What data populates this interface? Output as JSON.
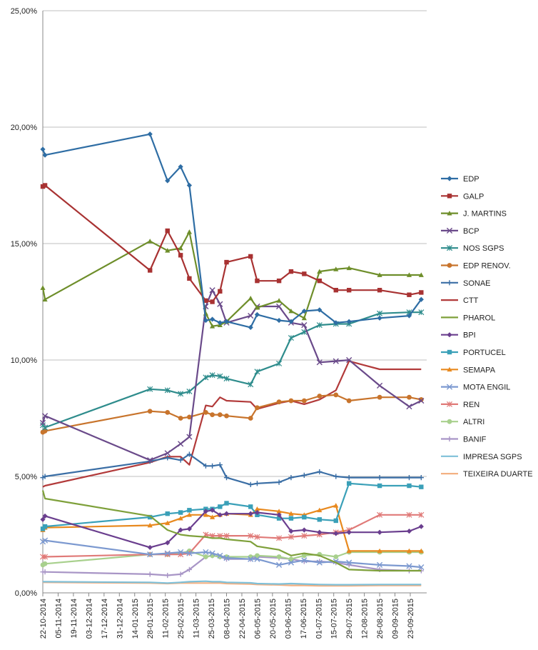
{
  "chart_data": {
    "type": "line",
    "title": "",
    "xlabel": "",
    "ylabel": "",
    "ylim": [
      0,
      25
    ],
    "y_tick_values": [
      0,
      5,
      10,
      15,
      20,
      25
    ],
    "y_tick_labels": [
      "0,00%",
      "5,00%",
      "10,00%",
      "15,00%",
      "20,00%",
      "25,00%"
    ],
    "x_range": [
      "2014-10-22",
      "2015-10-08"
    ],
    "x_tick_labels": [
      "22-10-2014",
      "05-11-2014",
      "19-11-2014",
      "03-12-2014",
      "17-12-2014",
      "31-12-2014",
      "14-01-2015",
      "28-01-2015",
      "11-02-2015",
      "25-02-2015",
      "11-03-2015",
      "25-03-2015",
      "08-04-2015",
      "22-04-2015",
      "06-05-2015",
      "20-05-2015",
      "03-06-2015",
      "17-06-2015",
      "01-07-2015",
      "15-07-2015",
      "29-07-2015",
      "12-08-2015",
      "26-08-2015",
      "09-09-2015",
      "23-09-2015"
    ],
    "grid": "horizontal",
    "legend_position": "right",
    "x": [
      "2014-10-22",
      "2014-10-24",
      "2015-01-28",
      "2015-02-13",
      "2015-02-25",
      "2015-03-05",
      "2015-03-20",
      "2015-03-26",
      "2015-04-02",
      "2015-04-08",
      "2015-04-30",
      "2015-05-06",
      "2015-05-26",
      "2015-06-06",
      "2015-06-18",
      "2015-07-02",
      "2015-07-17",
      "2015-07-29",
      "2015-08-26",
      "2015-09-22",
      "2015-10-03"
    ],
    "series": [
      {
        "name": "EDP",
        "color": "#2E6DA4",
        "marker": "diamond",
        "values": [
          19.05,
          18.8,
          19.7,
          17.7,
          18.3,
          17.5,
          11.7,
          11.75,
          11.6,
          11.65,
          11.4,
          11.95,
          11.7,
          11.65,
          12.1,
          12.15,
          11.6,
          11.65,
          11.8,
          11.9,
          12.6
        ]
      },
      {
        "name": "GALP",
        "color": "#A83232",
        "marker": "square",
        "values": [
          17.45,
          17.5,
          13.85,
          15.55,
          14.5,
          13.5,
          12.55,
          12.5,
          12.95,
          14.2,
          14.45,
          13.4,
          13.4,
          13.8,
          13.7,
          13.4,
          13.0,
          13.0,
          13.0,
          12.8,
          12.9
        ]
      },
      {
        "name": "J. MARTINS",
        "color": "#6E8E2A",
        "marker": "triangle",
        "values": [
          13.1,
          12.6,
          15.1,
          14.7,
          14.8,
          15.5,
          12.0,
          11.45,
          11.5,
          11.65,
          12.65,
          12.25,
          12.55,
          12.1,
          11.8,
          13.8,
          13.9,
          13.95,
          13.65,
          13.65,
          13.65
        ]
      },
      {
        "name": "BCP",
        "color": "#6A4A8A",
        "marker": "x",
        "values": [
          7.3,
          7.6,
          5.7,
          6.0,
          6.4,
          6.7,
          12.3,
          13.0,
          12.4,
          11.6,
          11.9,
          12.3,
          12.3,
          11.6,
          11.5,
          9.9,
          9.95,
          10.0,
          8.9,
          8.0,
          8.25
        ]
      },
      {
        "name": "NOS SGPS",
        "color": "#2E8C8C",
        "marker": "asterisk",
        "values": [
          7.2,
          7.1,
          8.75,
          8.7,
          8.55,
          8.65,
          9.25,
          9.35,
          9.3,
          9.2,
          8.95,
          9.5,
          9.85,
          10.95,
          11.2,
          11.5,
          11.55,
          11.55,
          12.0,
          12.05,
          12.05
        ]
      },
      {
        "name": "EDP RENOV.",
        "color": "#C8742C",
        "marker": "circle",
        "values": [
          6.9,
          6.95,
          7.8,
          7.75,
          7.5,
          7.55,
          7.75,
          7.65,
          7.65,
          7.6,
          7.5,
          7.95,
          8.2,
          8.25,
          8.25,
          8.45,
          8.5,
          8.25,
          8.4,
          8.4,
          8.3
        ]
      },
      {
        "name": "SONAE",
        "color": "#3A6EA5",
        "marker": "plus",
        "values": [
          4.95,
          5.0,
          5.65,
          5.8,
          5.7,
          5.95,
          5.45,
          5.45,
          5.5,
          4.95,
          4.65,
          4.7,
          4.75,
          4.95,
          5.05,
          5.2,
          5.0,
          4.95,
          4.95,
          4.95,
          4.95
        ]
      },
      {
        "name": "CTT",
        "color": "#B23A3A",
        "marker": "dash",
        "values": [
          4.55,
          4.6,
          5.6,
          5.85,
          5.85,
          5.5,
          8.05,
          8.0,
          8.4,
          8.25,
          8.2,
          7.9,
          8.15,
          8.25,
          8.1,
          8.3,
          8.7,
          9.95,
          9.6,
          9.6,
          9.6
        ]
      },
      {
        "name": "PHAROL",
        "color": "#7EA03A",
        "marker": "dash",
        "values": [
          4.4,
          4.05,
          3.3,
          2.7,
          2.5,
          2.45,
          2.4,
          2.35,
          2.35,
          2.3,
          2.2,
          2.0,
          1.85,
          1.6,
          1.7,
          1.6,
          1.3,
          1.0,
          0.95,
          0.95,
          0.95
        ]
      },
      {
        "name": "BPI",
        "color": "#6A3E8E",
        "marker": "diamond",
        "values": [
          3.15,
          3.3,
          1.95,
          2.15,
          2.7,
          2.75,
          3.5,
          3.55,
          3.35,
          3.4,
          3.4,
          3.45,
          3.35,
          2.65,
          2.7,
          2.6,
          2.55,
          2.6,
          2.6,
          2.65,
          2.85
        ]
      },
      {
        "name": "PORTUCEL",
        "color": "#3AA0B8",
        "marker": "square",
        "values": [
          2.75,
          2.85,
          3.25,
          3.4,
          3.45,
          3.55,
          3.6,
          3.6,
          3.7,
          3.85,
          3.7,
          3.35,
          3.2,
          3.2,
          3.25,
          3.15,
          3.1,
          4.7,
          4.6,
          4.6,
          4.55
        ]
      },
      {
        "name": "SEMAPA",
        "color": "#E8891E",
        "marker": "triangle",
        "values": [
          2.7,
          2.8,
          2.9,
          3.0,
          3.2,
          3.35,
          3.35,
          3.25,
          3.35,
          3.4,
          3.35,
          3.6,
          3.5,
          3.4,
          3.35,
          3.55,
          3.75,
          1.8,
          1.8,
          1.8,
          1.8
        ]
      },
      {
        "name": "MOTA ENGIL",
        "color": "#7C99D0",
        "marker": "x",
        "values": [
          2.2,
          2.25,
          1.65,
          1.7,
          1.75,
          1.7,
          1.75,
          1.7,
          1.6,
          1.5,
          1.45,
          1.45,
          1.2,
          1.3,
          1.4,
          1.3,
          1.35,
          1.3,
          1.2,
          1.15,
          1.1
        ]
      },
      {
        "name": "REN",
        "color": "#E07A78",
        "marker": "asterisk",
        "values": [
          1.55,
          1.55,
          1.65,
          1.65,
          1.65,
          1.7,
          2.5,
          2.45,
          2.45,
          2.45,
          2.45,
          2.4,
          2.35,
          2.4,
          2.45,
          2.5,
          2.6,
          2.7,
          3.35,
          3.35,
          3.35
        ]
      },
      {
        "name": "ALTRI",
        "color": "#A8D08D",
        "marker": "circle",
        "values": [
          1.2,
          1.25,
          1.65,
          1.65,
          1.7,
          1.8,
          1.55,
          1.6,
          1.55,
          1.55,
          1.55,
          1.6,
          1.55,
          1.45,
          1.6,
          1.65,
          1.55,
          1.75,
          1.75,
          1.75,
          1.75
        ]
      },
      {
        "name": "BANIF",
        "color": "#A895C6",
        "marker": "plus",
        "values": [
          0.9,
          0.9,
          0.8,
          0.75,
          0.8,
          1.0,
          1.55,
          1.6,
          1.55,
          1.45,
          1.45,
          1.55,
          1.5,
          1.45,
          1.35,
          1.35,
          1.3,
          1.2,
          1.0,
          0.95,
          0.95
        ]
      },
      {
        "name": "IMPRESA SGPS",
        "color": "#7FC0D8",
        "marker": "dash",
        "values": [
          0.48,
          0.48,
          0.45,
          0.42,
          0.45,
          0.48,
          0.5,
          0.48,
          0.48,
          0.45,
          0.43,
          0.4,
          0.38,
          0.4,
          0.38,
          0.36,
          0.35,
          0.35,
          0.36,
          0.36,
          0.36
        ]
      },
      {
        "name": "TEIXEIRA DUARTE",
        "color": "#F4B183",
        "marker": "dash",
        "values": [
          0.45,
          0.45,
          0.42,
          0.4,
          0.42,
          0.42,
          0.42,
          0.42,
          0.42,
          0.4,
          0.38,
          0.36,
          0.34,
          0.32,
          0.32,
          0.3,
          0.3,
          0.3,
          0.32,
          0.32,
          0.32
        ]
      }
    ]
  }
}
